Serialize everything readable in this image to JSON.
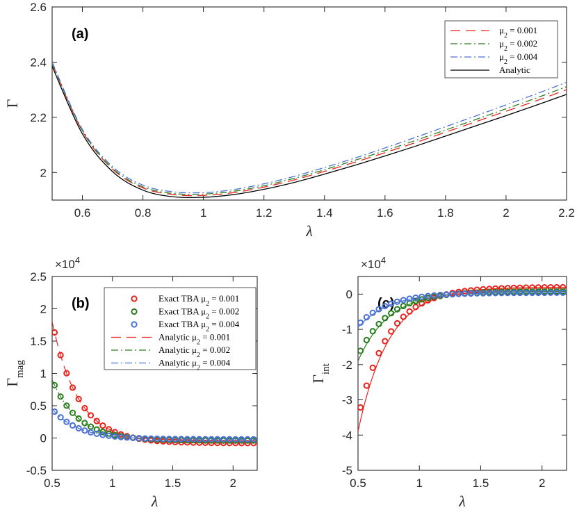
{
  "chart_data": [
    {
      "type": "line",
      "panel_label": "(a)",
      "xlabel": "λ",
      "ylabel": "Γ",
      "xlim": [
        0.5,
        2.2
      ],
      "ylim": [
        1.9,
        2.6
      ],
      "xticks": [
        0.6,
        0.8,
        1,
        1.2,
        1.4,
        1.6,
        1.8,
        2,
        2.2
      ],
      "xtick_labels": [
        "0.6",
        "0.8",
        "1",
        "1.2",
        "1.4",
        "1.6",
        "1.8",
        "2",
        "2.2"
      ],
      "yticks": [
        2,
        2.2,
        2.4,
        2.6
      ],
      "ytick_labels": [
        "2",
        "2.2",
        "2.4",
        "2.6"
      ],
      "legend_position": "top-right",
      "x": [
        0.5,
        0.6,
        0.7,
        0.8,
        0.9,
        1.0,
        1.1,
        1.2,
        1.3,
        1.4,
        1.5,
        1.6,
        1.7,
        1.8,
        1.9,
        2.0,
        2.1,
        2.2
      ],
      "series": [
        {
          "name": "μ2 = 0.001",
          "label_main": "μ",
          "label_sub": "2",
          "label_rest": " = 0.001",
          "color": "#e8231c",
          "dash": "14,8",
          "values": [
            2.395,
            2.15,
            2.012,
            1.944,
            1.92,
            1.917,
            1.927,
            1.947,
            1.973,
            2.004,
            2.037,
            2.072,
            2.108,
            2.146,
            2.184,
            2.222,
            2.26,
            2.3
          ]
        },
        {
          "name": "μ2 = 0.002",
          "label_main": "μ",
          "label_sub": "2",
          "label_rest": " = 0.002",
          "color": "#2a7d1f",
          "dash": "10,4,2,4",
          "values": [
            2.397,
            2.152,
            2.015,
            1.948,
            1.924,
            1.922,
            1.932,
            1.952,
            1.979,
            2.01,
            2.044,
            2.079,
            2.116,
            2.154,
            2.192,
            2.231,
            2.27,
            2.311
          ]
        },
        {
          "name": "μ2 = 0.004",
          "label_main": "μ",
          "label_sub": "2",
          "label_rest": " = 0.004",
          "color": "#4a72d6",
          "dash": "10,4,2,4",
          "values": [
            2.4,
            2.156,
            2.021,
            1.954,
            1.93,
            1.927,
            1.938,
            1.959,
            1.986,
            2.018,
            2.052,
            2.089,
            2.127,
            2.166,
            2.205,
            2.245,
            2.285,
            2.327
          ]
        },
        {
          "name": "Analytic",
          "label_main": "Analytic",
          "label_sub": "",
          "label_rest": "",
          "color": "#000000",
          "dash": "",
          "values": [
            2.385,
            2.14,
            2.003,
            1.936,
            1.912,
            1.91,
            1.92,
            1.939,
            1.964,
            1.994,
            2.026,
            2.06,
            2.095,
            2.132,
            2.169,
            2.206,
            2.244,
            2.283
          ]
        }
      ]
    },
    {
      "type": "scatter",
      "panel_label": "(b)",
      "multiplier": "×10",
      "multiplier_exp": "4",
      "xlabel": "λ",
      "ylabel": "Γ",
      "ylabel_sub": "mag",
      "xlim": [
        0.5,
        2.2
      ],
      "ylim": [
        -0.5,
        2.5
      ],
      "xticks": [
        0.5,
        1,
        1.5,
        2
      ],
      "xtick_labels": [
        "0.5",
        "1",
        "1.5",
        "2"
      ],
      "yticks": [
        -0.5,
        0,
        0.5,
        1,
        1.5,
        2,
        2.5
      ],
      "ytick_labels": [
        "-0.5",
        "0",
        "0.5",
        "1",
        "1.5",
        "2",
        "2.5"
      ],
      "legend_position": "top-right",
      "series": [
        {
          "name": "Exact TBA μ2 = 0.001",
          "label_main": "Exact TBA μ",
          "label_sub": "2",
          "label_rest": " = 0.001",
          "kind": "marker",
          "color": "#e8231c",
          "start": 1.8,
          "end": -0.08,
          "rate": 4.6
        },
        {
          "name": "Exact TBA μ2 = 0.002",
          "label_main": "Exact TBA μ",
          "label_sub": "2",
          "label_rest": " = 0.002",
          "kind": "marker",
          "color": "#2a7d1f",
          "start": 0.9,
          "end": -0.04,
          "rate": 4.6
        },
        {
          "name": "Exact TBA μ2 = 0.004",
          "label_main": "Exact TBA μ",
          "label_sub": "2",
          "label_rest": " = 0.004",
          "kind": "marker",
          "color": "#4a72d6",
          "start": 0.45,
          "end": -0.02,
          "rate": 4.6
        },
        {
          "name": "Analytic μ2 = 0.001",
          "label_main": "Analytic μ",
          "label_sub": "2",
          "label_rest": " = 0.001",
          "kind": "line",
          "color": "#e8231c",
          "dash": "14,8",
          "start": 1.8,
          "end": -0.08,
          "rate": 4.6
        },
        {
          "name": "Analytic μ2 = 0.002",
          "label_main": "Analytic μ",
          "label_sub": "2",
          "label_rest": " = 0.002",
          "kind": "line",
          "color": "#2a7d1f",
          "dash": "10,4,2,4",
          "start": 0.9,
          "end": -0.04,
          "rate": 4.6
        },
        {
          "name": "Analytic μ2 = 0.004",
          "label_main": "Analytic μ",
          "label_sub": "2",
          "label_rest": " = 0.004",
          "kind": "line",
          "color": "#4a72d6",
          "dash": "10,4,2,4",
          "start": 0.45,
          "end": -0.02,
          "rate": 4.6
        }
      ]
    },
    {
      "type": "scatter",
      "panel_label": "(c)",
      "multiplier": "×10",
      "multiplier_exp": "4",
      "xlabel": "λ",
      "ylabel": "Γ",
      "ylabel_sub": "int",
      "xlim": [
        0.5,
        2.2
      ],
      "ylim": [
        -5,
        0.5
      ],
      "xticks": [
        0.5,
        1,
        1.5,
        2
      ],
      "xtick_labels": [
        "0.5",
        "1",
        "1.5",
        "2"
      ],
      "yticks": [
        -5,
        -4,
        -3,
        -2,
        -1,
        0
      ],
      "ytick_labels": [
        "-5",
        "-4",
        "-3",
        "-2",
        "-1",
        "0"
      ],
      "series": [
        {
          "name": "Exact TBA μ2 = 0.001",
          "kind": "marker",
          "color": "#e8231c",
          "start": -3.5,
          "end": 0.2,
          "rate": 4.0
        },
        {
          "name": "Exact TBA μ2 = 0.002",
          "kind": "marker",
          "color": "#2a7d1f",
          "start": -1.75,
          "end": 0.08,
          "rate": 4.0
        },
        {
          "name": "Exact TBA μ2 = 0.004",
          "kind": "marker",
          "color": "#4a72d6",
          "start": -0.88,
          "end": 0.04,
          "rate": 4.0
        },
        {
          "name": "Analytic μ2 = 0.001",
          "kind": "line",
          "color": "#e8231c",
          "dash": "",
          "start": -3.9,
          "end": 0.2,
          "rate": 4.0
        },
        {
          "name": "Analytic μ2 = 0.002",
          "kind": "line",
          "color": "#2a7d1f",
          "dash": "",
          "start": -1.9,
          "end": 0.08,
          "rate": 4.0
        },
        {
          "name": "Analytic μ2 = 0.004",
          "kind": "line",
          "color": "#4a72d6",
          "dash": "",
          "start": -0.95,
          "end": 0.04,
          "rate": 4.0
        }
      ]
    }
  ]
}
